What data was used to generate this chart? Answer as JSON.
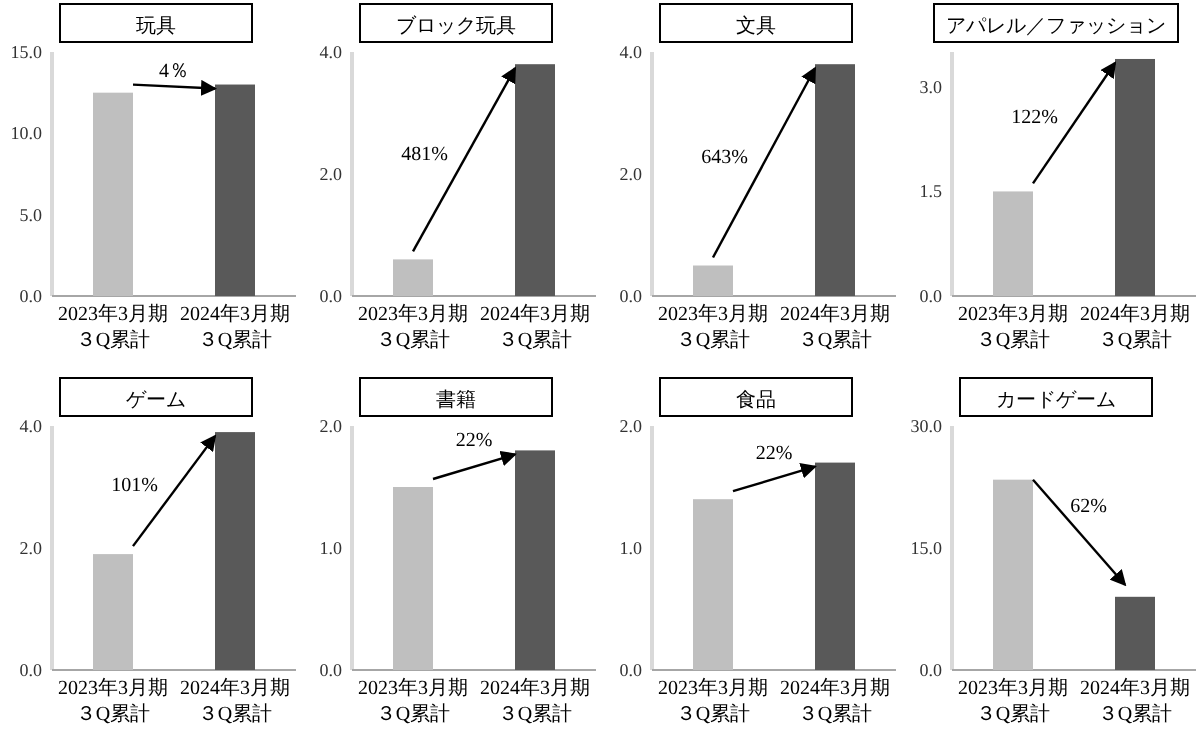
{
  "chart_data": [
    {
      "type": "bar",
      "title": "玩具",
      "categories": [
        "2023年3月期３Q累計",
        "2024年3月期３Q累計"
      ],
      "values": [
        12.5,
        13.0
      ],
      "colors": [
        "#bfbfbf",
        "#595959"
      ],
      "ylim": [
        0,
        15
      ],
      "yticks": [
        {
          "value": 0,
          "label": "0.0"
        },
        {
          "value": 5,
          "label": "5.0"
        },
        {
          "value": 10,
          "label": "10.0"
        },
        {
          "value": 15,
          "label": "15.0"
        }
      ],
      "annotations": [
        "4％"
      ]
    },
    {
      "type": "bar",
      "title": "ブロック玩具",
      "categories": [
        "2023年3月期３Q累計",
        "2024年3月期３Q累計"
      ],
      "values": [
        0.6,
        3.8
      ],
      "colors": [
        "#bfbfbf",
        "#595959"
      ],
      "ylim": [
        0,
        4
      ],
      "yticks": [
        {
          "value": 0,
          "label": "0.0"
        },
        {
          "value": 2,
          "label": "2.0"
        },
        {
          "value": 4,
          "label": "4.0"
        }
      ],
      "annotations": [
        "481%"
      ]
    },
    {
      "type": "bar",
      "title": "文具",
      "categories": [
        "2023年3月期３Q累計",
        "2024年3月期３Q累計"
      ],
      "values": [
        0.5,
        3.8
      ],
      "colors": [
        "#bfbfbf",
        "#595959"
      ],
      "ylim": [
        0,
        4
      ],
      "yticks": [
        {
          "value": 0,
          "label": "0.0"
        },
        {
          "value": 2,
          "label": "2.0"
        },
        {
          "value": 4,
          "label": "4.0"
        }
      ],
      "annotations": [
        "643%"
      ]
    },
    {
      "type": "bar",
      "title": "アパレル／ファッション",
      "categories": [
        "2023年3月期３Q累計",
        "2024年3月期３Q累計"
      ],
      "values": [
        1.5,
        3.4
      ],
      "colors": [
        "#bfbfbf",
        "#595959"
      ],
      "ylim": [
        0,
        3.5
      ],
      "yticks": [
        {
          "value": 0,
          "label": "0.0"
        },
        {
          "value": 1.5,
          "label": "1.5"
        },
        {
          "value": 3,
          "label": "3.0"
        }
      ],
      "annotations": [
        "122%"
      ]
    },
    {
      "type": "bar",
      "title": "ゲーム",
      "categories": [
        "2023年3月期３Q累計",
        "2024年3月期３Q累計"
      ],
      "values": [
        1.9,
        3.9
      ],
      "colors": [
        "#bfbfbf",
        "#595959"
      ],
      "ylim": [
        0,
        4
      ],
      "yticks": [
        {
          "value": 0,
          "label": "0.0"
        },
        {
          "value": 2,
          "label": "2.0"
        },
        {
          "value": 4,
          "label": "4.0"
        }
      ],
      "annotations": [
        "101%"
      ]
    },
    {
      "type": "bar",
      "title": "書籍",
      "categories": [
        "2023年3月期３Q累計",
        "2024年3月期３Q累計"
      ],
      "values": [
        1.5,
        1.8
      ],
      "colors": [
        "#bfbfbf",
        "#595959"
      ],
      "ylim": [
        0,
        2
      ],
      "yticks": [
        {
          "value": 0,
          "label": "0.0"
        },
        {
          "value": 1,
          "label": "1.0"
        },
        {
          "value": 2,
          "label": "2.0"
        }
      ],
      "annotations": [
        "22%"
      ]
    },
    {
      "type": "bar",
      "title": "食品",
      "categories": [
        "2023年3月期３Q累計",
        "2024年3月期３Q累計"
      ],
      "values": [
        1.4,
        1.7
      ],
      "colors": [
        "#bfbfbf",
        "#595959"
      ],
      "ylim": [
        0,
        2
      ],
      "yticks": [
        {
          "value": 0,
          "label": "0.0"
        },
        {
          "value": 1,
          "label": "1.0"
        },
        {
          "value": 2,
          "label": "2.0"
        }
      ],
      "annotations": [
        "22%"
      ]
    },
    {
      "type": "bar",
      "title": "カードゲーム",
      "categories": [
        "2023年3月期３Q累計",
        "2024年3月期３Q累計"
      ],
      "values": [
        23.4,
        9.0
      ],
      "colors": [
        "#bfbfbf",
        "#595959"
      ],
      "ylim": [
        0,
        30
      ],
      "yticks": [
        {
          "value": 0,
          "label": "0.0"
        },
        {
          "value": 15,
          "label": "15.0"
        },
        {
          "value": 30,
          "label": "30.0"
        }
      ],
      "annotations": [
        "62%"
      ]
    }
  ]
}
